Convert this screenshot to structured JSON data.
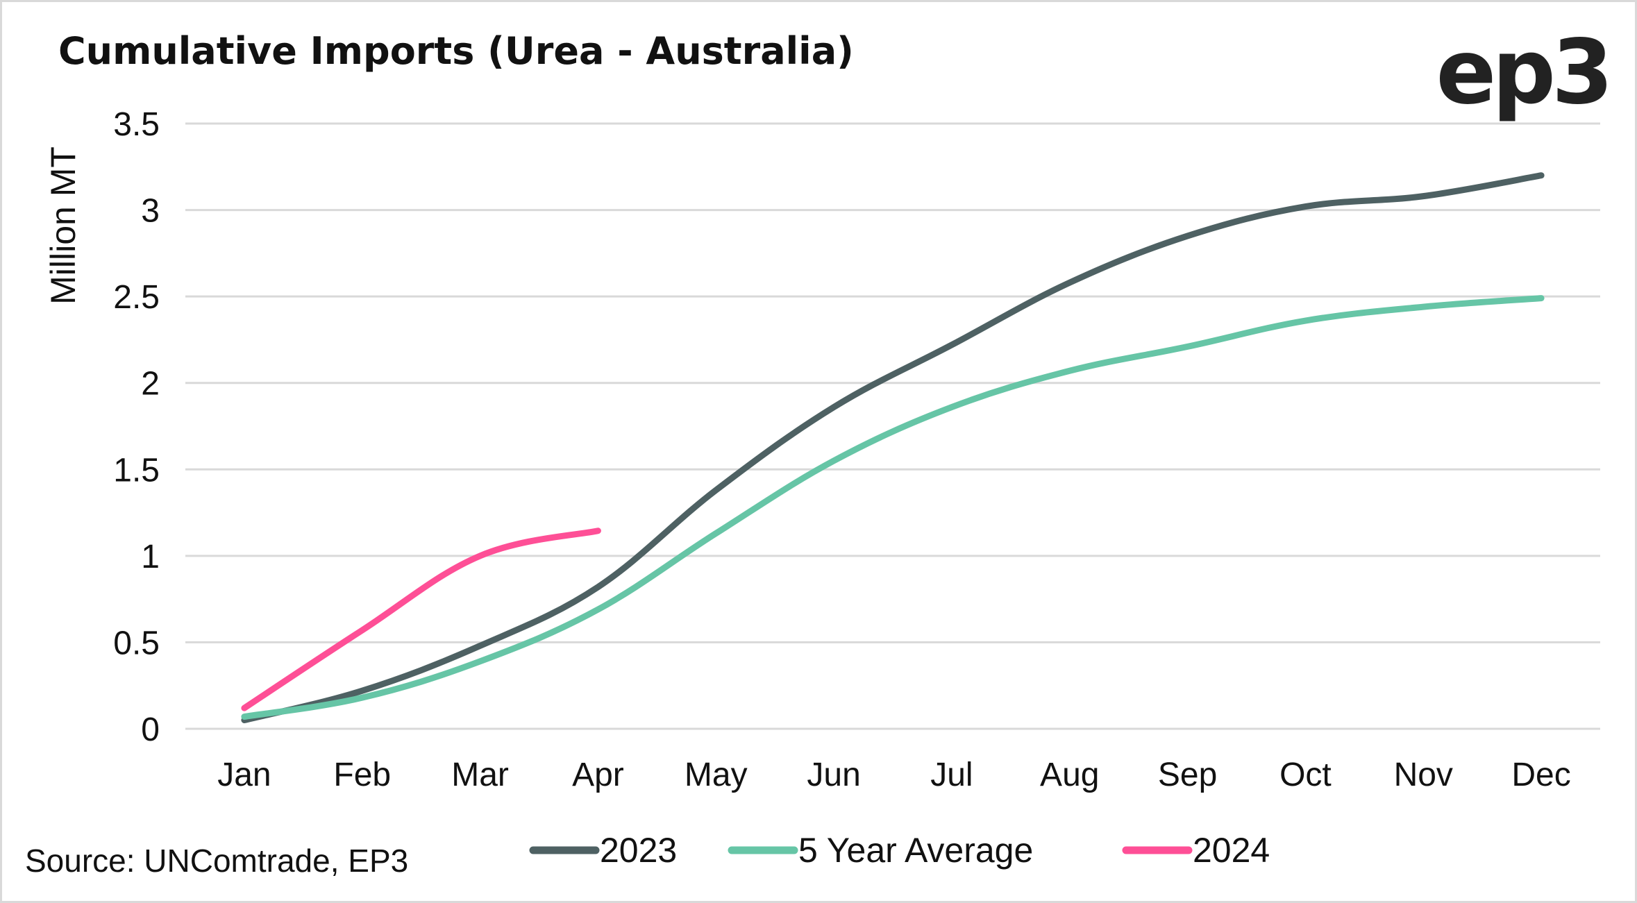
{
  "chart_data": {
    "type": "line",
    "title": "Cumulative Imports (Urea - Australia)",
    "logo": "ep3",
    "xlabel": "",
    "ylabel": "Million MT",
    "source": "Source: UNComtrade, EP3",
    "categories": [
      "Jan",
      "Feb",
      "Mar",
      "Apr",
      "May",
      "Jun",
      "Jul",
      "Aug",
      "Sep",
      "Oct",
      "Nov",
      "Dec"
    ],
    "ylim": [
      0,
      3.5
    ],
    "yticks": [
      0,
      0.5,
      1,
      1.5,
      2,
      2.5,
      3,
      3.5
    ],
    "ytick_labels": [
      "0",
      "0.5",
      "1",
      "1.5",
      "2",
      "2.5",
      "3",
      "3.5"
    ],
    "grid": true,
    "legend_position": "bottom",
    "series": [
      {
        "name": "2023",
        "color": "#4e6163",
        "values": [
          0.05,
          0.22,
          0.48,
          0.82,
          1.38,
          1.86,
          2.22,
          2.58,
          2.85,
          3.02,
          3.08,
          3.2
        ]
      },
      {
        "name": "5 Year Average",
        "color": "#66c5a6",
        "values": [
          0.07,
          0.18,
          0.39,
          0.69,
          1.13,
          1.55,
          1.86,
          2.07,
          2.21,
          2.36,
          2.44,
          2.49
        ]
      },
      {
        "name": "2024",
        "color": "#fe4f96",
        "values": [
          0.12,
          0.57,
          1.0,
          1.145
        ]
      }
    ]
  }
}
